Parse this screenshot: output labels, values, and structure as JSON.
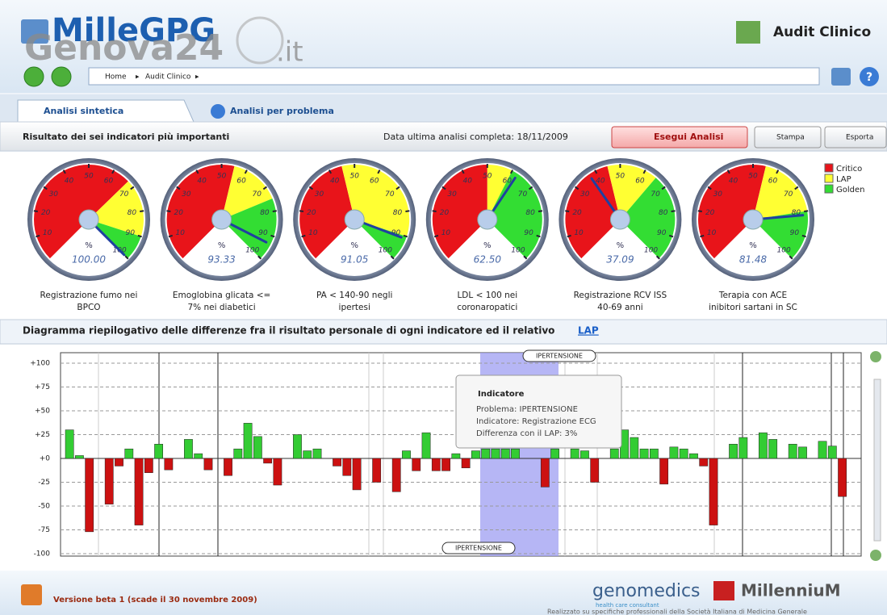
{
  "header": {
    "logo": "MilleGPG",
    "watermark": "Genova24",
    "watermark_suffix": ".it",
    "app_title": "Audit Clinico"
  },
  "breadcrumb": [
    "Home",
    "Audit Clinico"
  ],
  "tabs": [
    "Analisi sintetica",
    "Analisi per problema"
  ],
  "toolbar": {
    "title": "Risultato dei sei indicatori più importanti",
    "date_text": "Data ultima analisi completa: 18/11/2009",
    "buttons": [
      "Esegui Analisi",
      "Stampa",
      "Esporta"
    ]
  },
  "legend": [
    {
      "name": "Critico",
      "color": "#e8141a"
    },
    {
      "name": "LAP",
      "color": "#ffff33"
    },
    {
      "name": "Golden",
      "color": "#33dd33"
    }
  ],
  "gauges": {
    "unit": "%",
    "ticks": [
      10,
      20,
      30,
      40,
      50,
      60,
      70,
      80,
      90,
      100
    ],
    "items": [
      {
        "label": [
          "Registrazione fumo nei",
          "BPCO"
        ],
        "value": 100,
        "value_label": "100.00",
        "lap": 67,
        "golden": 90
      },
      {
        "label": [
          "Emoglobina glicata <=",
          "7% nei diabetici"
        ],
        "value": 93.33,
        "value_label": "93.33",
        "lap": 55,
        "golden": 75
      },
      {
        "label": [
          "PA < 140-90 negli",
          "ipertesi"
        ],
        "value": 91.05,
        "value_label": "91.05",
        "lap": 45,
        "golden": 90
      },
      {
        "label": [
          "LDL < 100 nei",
          "coronaropatici"
        ],
        "value": 62.5,
        "value_label": "62.50",
        "lap": 50,
        "golden": 60
      },
      {
        "label": [
          "Registrazione RCV ISS",
          "40-69 anni"
        ],
        "value": 37.09,
        "value_label": "37.09",
        "lap": 45,
        "golden": 65
      },
      {
        "label": [
          "Terapia con ACE",
          "inibitori sartani in SC"
        ],
        "value": 81.48,
        "value_label": "81.48",
        "lap": 55,
        "golden": 80
      }
    ]
  },
  "section_title": "Diagramma riepilogativo delle differenze fra il risultato personale di ogni indicatore ed il relativo",
  "section_link": "LAP",
  "chart_data": {
    "type": "bar",
    "ylim": [
      -100,
      100
    ],
    "yticks": [
      {
        "value": 100,
        "label": "+100"
      },
      {
        "value": 75,
        "label": "+75"
      },
      {
        "value": 50,
        "label": "+50"
      },
      {
        "value": 25,
        "label": "+25"
      },
      {
        "value": 0,
        "label": "+0"
      },
      {
        "value": -25,
        "label": "-25"
      },
      {
        "value": -50,
        "label": "-50"
      },
      {
        "value": -75,
        "label": "-75"
      },
      {
        "value": -100,
        "label": "-100"
      }
    ],
    "grid": true,
    "positive_color": "#33cc33",
    "negative_color": "#cc1111",
    "values": [
      30,
      3,
      -77,
      null,
      -48,
      -8,
      10,
      -70,
      -15,
      15,
      -12,
      null,
      20,
      5,
      -12,
      null,
      -18,
      10,
      37,
      23,
      -5,
      -28,
      null,
      25,
      8,
      10,
      null,
      -8,
      -18,
      -33,
      null,
      -25,
      null,
      -35,
      8,
      -13,
      27,
      -13,
      -13,
      5,
      -10,
      8,
      10,
      10,
      10,
      10,
      null,
      null,
      -30,
      10,
      null,
      10,
      8,
      -25,
      null,
      10,
      30,
      22,
      10,
      10,
      -27,
      12,
      10,
      5,
      -8,
      -70,
      null,
      15,
      22,
      null,
      27,
      20,
      null,
      15,
      12,
      null,
      18,
      13,
      -40,
      null
    ],
    "highlight": "IPERTENSIONE",
    "tooltip": {
      "title": "Indicatore",
      "lines": [
        "Problema: IPERTENSIONE",
        "Indicatore: Registrazione ECG",
        "Differenza con il LAP: 3%"
      ]
    }
  },
  "footer": {
    "version": "Versione beta 1 (scade il 30 novembre 2009)",
    "brand1": "genomedics",
    "brand1_sub": "health care consultant",
    "brand2": "MillenniuM",
    "credit": "Realizzato su specifiche professionali della Società Italiana di Medicina Generale"
  }
}
